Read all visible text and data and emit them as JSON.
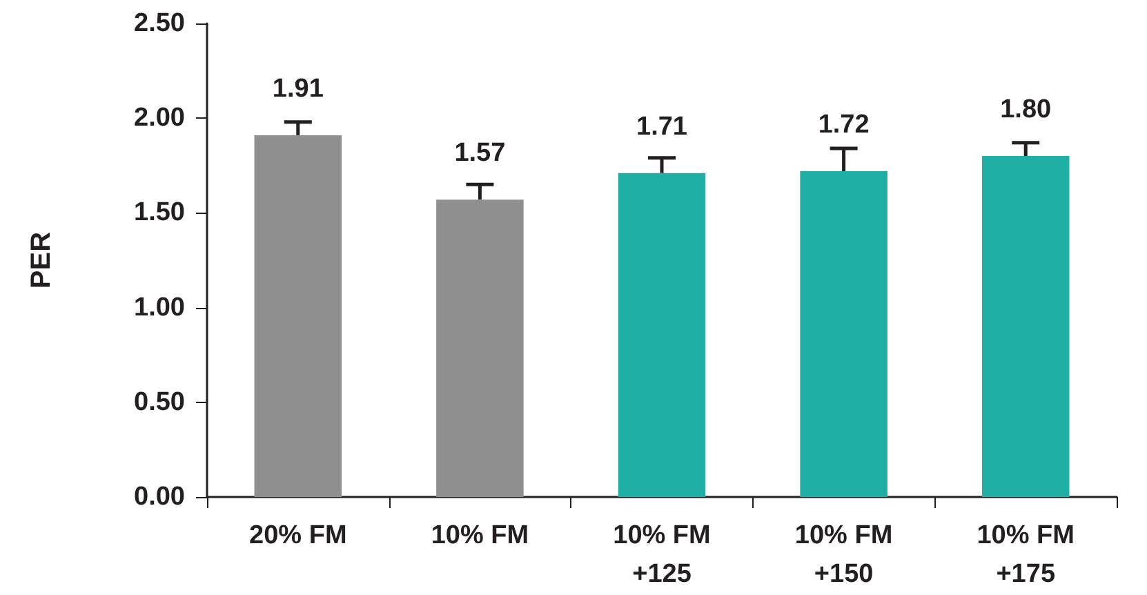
{
  "chart_data": {
    "type": "bar",
    "ylabel": "PER",
    "categories": [
      "20% FM",
      "10% FM",
      "10% FM\n+125",
      "10% FM\n+150",
      "10% FM\n+175"
    ],
    "values": [
      1.91,
      1.57,
      1.71,
      1.72,
      1.8
    ],
    "colors": [
      "#8f8f8f",
      "#8f8f8f",
      "#20afa5",
      "#20afa5",
      "#20afa5"
    ],
    "errors": [
      [
        1.91,
        1.98
      ],
      [
        1.57,
        1.65
      ],
      [
        1.71,
        1.79
      ],
      [
        1.72,
        1.84
      ],
      [
        1.8,
        1.87
      ]
    ],
    "value_labels": [
      "1.91",
      "1.57",
      "1.71",
      "1.72",
      "1.80"
    ],
    "ylim": [
      0,
      2.5
    ],
    "yticks": [
      {
        "value": 0,
        "label": "0.00"
      },
      {
        "value": 0.5,
        "label": "0.50"
      },
      {
        "value": 1,
        "label": "1.00"
      },
      {
        "value": 1.5,
        "label": "1.50"
      },
      {
        "value": 2,
        "label": "2.00"
      },
      {
        "value": 2.5,
        "label": "2.50"
      }
    ],
    "grid": false
  }
}
